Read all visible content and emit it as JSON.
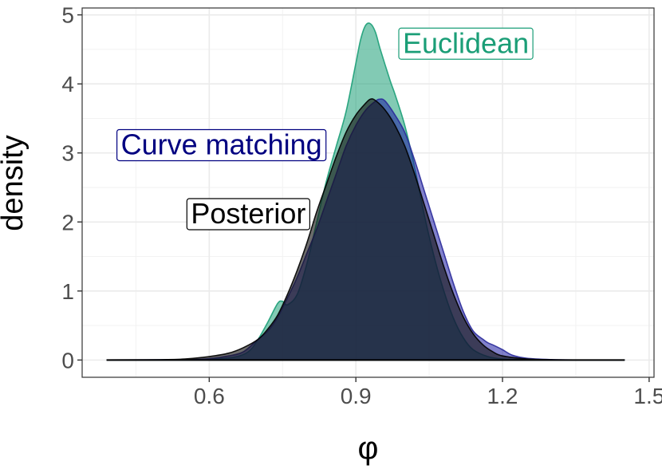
{
  "chart_data": {
    "type": "area",
    "title": "",
    "xlabel": "φ",
    "ylabel": "density",
    "xlim": [
      0.34,
      1.51
    ],
    "ylim": [
      -0.25,
      5.1
    ],
    "x_ticks": [
      {
        "value": 0.6,
        "label": "0.6"
      },
      {
        "value": 0.9,
        "label": "0.9"
      },
      {
        "value": 1.2,
        "label": "1.2"
      },
      {
        "value": 1.5,
        "label": "1.5"
      }
    ],
    "y_ticks": [
      {
        "value": 0,
        "label": "0"
      },
      {
        "value": 1,
        "label": "1"
      },
      {
        "value": 2,
        "label": "2"
      },
      {
        "value": 3,
        "label": "3"
      },
      {
        "value": 4,
        "label": "4"
      },
      {
        "value": 5,
        "label": "5"
      }
    ],
    "grid": true,
    "series": [
      {
        "name": "Euclidean",
        "fill": "#1b9e77",
        "stroke": "#1b9e77",
        "label_position": {
          "x": 1.125,
          "y": 4.45
        },
        "points": [
          [
            0.39,
            0
          ],
          [
            0.55,
            0.003
          ],
          [
            0.6,
            0.01
          ],
          [
            0.65,
            0.04
          ],
          [
            0.68,
            0.12
          ],
          [
            0.7,
            0.3
          ],
          [
            0.72,
            0.55
          ],
          [
            0.74,
            0.82
          ],
          [
            0.75,
            0.85
          ],
          [
            0.76,
            0.8
          ],
          [
            0.78,
            0.95
          ],
          [
            0.8,
            1.4
          ],
          [
            0.82,
            2.0
          ],
          [
            0.84,
            2.6
          ],
          [
            0.86,
            3.1
          ],
          [
            0.88,
            3.6
          ],
          [
            0.9,
            4.3
          ],
          [
            0.91,
            4.65
          ],
          [
            0.92,
            4.85
          ],
          [
            0.93,
            4.87
          ],
          [
            0.94,
            4.75
          ],
          [
            0.95,
            4.5
          ],
          [
            0.97,
            4.05
          ],
          [
            0.98,
            3.85
          ],
          [
            1.0,
            3.4
          ],
          [
            1.02,
            2.8
          ],
          [
            1.04,
            2.1
          ],
          [
            1.06,
            1.5
          ],
          [
            1.08,
            1.0
          ],
          [
            1.1,
            0.6
          ],
          [
            1.12,
            0.32
          ],
          [
            1.14,
            0.15
          ],
          [
            1.17,
            0.05
          ],
          [
            1.2,
            0.015
          ],
          [
            1.25,
            0.004
          ],
          [
            1.3,
            0.001
          ],
          [
            1.45,
            0
          ]
        ]
      },
      {
        "name": "Curve matching",
        "fill": "#1a1aa0",
        "stroke": "#2a2a9a",
        "label_position": {
          "x": 0.625,
          "y": 2.98
        },
        "points": [
          [
            0.39,
            0
          ],
          [
            0.55,
            0.005
          ],
          [
            0.6,
            0.02
          ],
          [
            0.64,
            0.06
          ],
          [
            0.67,
            0.12
          ],
          [
            0.7,
            0.3
          ],
          [
            0.72,
            0.42
          ],
          [
            0.74,
            0.62
          ],
          [
            0.76,
            0.9
          ],
          [
            0.78,
            1.2
          ],
          [
            0.8,
            1.55
          ],
          [
            0.82,
            1.9
          ],
          [
            0.84,
            2.3
          ],
          [
            0.86,
            2.7
          ],
          [
            0.88,
            3.1
          ],
          [
            0.9,
            3.4
          ],
          [
            0.92,
            3.62
          ],
          [
            0.94,
            3.75
          ],
          [
            0.95,
            3.78
          ],
          [
            0.96,
            3.75
          ],
          [
            0.98,
            3.55
          ],
          [
            1.0,
            3.3
          ],
          [
            1.02,
            2.9
          ],
          [
            1.04,
            2.45
          ],
          [
            1.06,
            2.0
          ],
          [
            1.08,
            1.55
          ],
          [
            1.1,
            1.1
          ],
          [
            1.12,
            0.7
          ],
          [
            1.14,
            0.42
          ],
          [
            1.16,
            0.3
          ],
          [
            1.17,
            0.25
          ],
          [
            1.18,
            0.22
          ],
          [
            1.2,
            0.15
          ],
          [
            1.22,
            0.07
          ],
          [
            1.25,
            0.025
          ],
          [
            1.3,
            0.006
          ],
          [
            1.35,
            0.001
          ],
          [
            1.45,
            0
          ]
        ]
      },
      {
        "name": "Posterior",
        "fill": "#111111",
        "stroke": "#000000",
        "label_position": {
          "x": 0.68,
          "y": 1.98
        },
        "points": [
          [
            0.39,
            0
          ],
          [
            0.5,
            0.004
          ],
          [
            0.55,
            0.015
          ],
          [
            0.6,
            0.05
          ],
          [
            0.64,
            0.1
          ],
          [
            0.67,
            0.18
          ],
          [
            0.7,
            0.3
          ],
          [
            0.72,
            0.45
          ],
          [
            0.74,
            0.65
          ],
          [
            0.76,
            0.95
          ],
          [
            0.78,
            1.3
          ],
          [
            0.8,
            1.7
          ],
          [
            0.82,
            2.15
          ],
          [
            0.84,
            2.55
          ],
          [
            0.86,
            2.95
          ],
          [
            0.88,
            3.3
          ],
          [
            0.9,
            3.55
          ],
          [
            0.92,
            3.72
          ],
          [
            0.93,
            3.78
          ],
          [
            0.94,
            3.76
          ],
          [
            0.96,
            3.62
          ],
          [
            0.98,
            3.4
          ],
          [
            1.0,
            3.1
          ],
          [
            1.02,
            2.7
          ],
          [
            1.04,
            2.25
          ],
          [
            1.06,
            1.8
          ],
          [
            1.08,
            1.35
          ],
          [
            1.1,
            0.95
          ],
          [
            1.12,
            0.62
          ],
          [
            1.14,
            0.38
          ],
          [
            1.16,
            0.22
          ],
          [
            1.18,
            0.12
          ],
          [
            1.2,
            0.06
          ],
          [
            1.25,
            0.015
          ],
          [
            1.3,
            0.004
          ],
          [
            1.35,
            0.001
          ],
          [
            1.45,
            0
          ]
        ]
      }
    ],
    "overlap_color": "#1f3550"
  }
}
